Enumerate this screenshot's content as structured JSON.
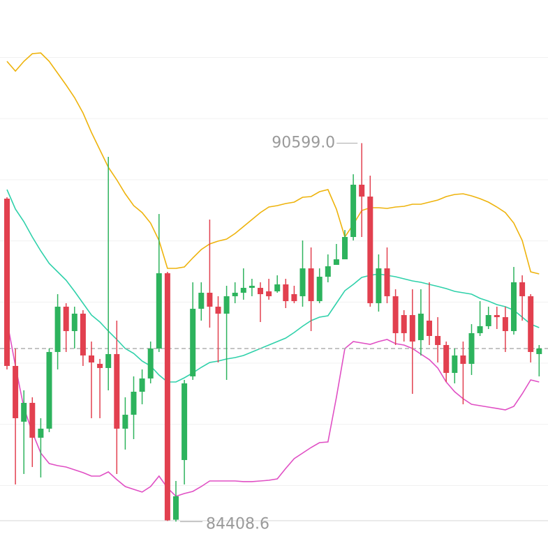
{
  "chart_data": {
    "type": "candlestick",
    "ylim": [
      84059,
      92940
    ],
    "yticks": [
      85000,
      86000,
      87000,
      88000,
      89000,
      90000,
      91000,
      92000
    ],
    "grid": true,
    "up_color": "#2db35d",
    "down_color": "#e2404f",
    "open": [
      89691,
      86955,
      86043,
      86351,
      85781,
      85929,
      87183,
      87924,
      87525,
      87810,
      87126,
      86989,
      86921,
      87149,
      85929,
      86157,
      86533,
      86750,
      87240,
      88471,
      84440,
      85416,
      86784,
      87890,
      88152,
      87924,
      87810,
      88095,
      88152,
      88232,
      88232,
      88175,
      88175,
      88289,
      88129,
      88095,
      88551,
      88015,
      88414,
      88608,
      88699,
      89064,
      89919,
      89725,
      87981,
      88551,
      88095,
      87787,
      87787,
      87377,
      87696,
      87445,
      87297,
      86841,
      87126,
      86989,
      87491,
      87605,
      87787,
      87753,
      87525,
      88323,
      88095,
      87149
    ],
    "high": [
      89714,
      87240,
      86556,
      86442,
      86100,
      87240,
      88129,
      87981,
      87924,
      87867,
      87354,
      87069,
      90375,
      87696,
      86442,
      86784,
      86898,
      87354,
      89440,
      88494,
      85074,
      86727,
      88323,
      88323,
      89349,
      88095,
      88266,
      88323,
      88551,
      88380,
      88323,
      88380,
      88437,
      88380,
      88266,
      89007,
      88893,
      88551,
      88779,
      88950,
      89178,
      90090,
      90599.0,
      90067,
      88779,
      88893,
      88209,
      87867,
      88209,
      88209,
      88323,
      87753,
      87354,
      87240,
      87354,
      87639,
      88015,
      87924,
      87924,
      87924,
      88574,
      88437,
      88129,
      87297
    ],
    "low": [
      86898,
      85017,
      85188,
      85302,
      85131,
      85872,
      86898,
      87183,
      87240,
      86955,
      86100,
      86100,
      86556,
      85188,
      85587,
      85758,
      86328,
      86670,
      87183,
      84420,
      84408.6,
      85017,
      86727,
      87696,
      87582,
      87012,
      86727,
      87981,
      88038,
      88095,
      87673,
      88038,
      88152,
      87901,
      87981,
      87924,
      87525,
      87981,
      88323,
      88608,
      88699,
      89007,
      89064,
      87924,
      87844,
      87981,
      87297,
      87354,
      86499,
      87126,
      87297,
      87012,
      86693,
      86670,
      86328,
      86807,
      87445,
      87559,
      87559,
      87183,
      87468,
      87696,
      87012,
      86784
    ],
    "close": [
      86955,
      86100,
      86351,
      85781,
      85929,
      87183,
      87924,
      87525,
      87810,
      87126,
      87012,
      86921,
      87149,
      85929,
      86157,
      86533,
      86750,
      87240,
      88471,
      84430,
      84823,
      86670,
      87890,
      88152,
      87924,
      87810,
      88095,
      88152,
      88232,
      88266,
      88129,
      88095,
      88289,
      88015,
      88015,
      88551,
      88015,
      88414,
      88585,
      88699,
      89064,
      89919,
      89725,
      87981,
      88551,
      88095,
      87491,
      87491,
      87354,
      87810,
      87445,
      87297,
      86841,
      87126,
      86989,
      87491,
      87605,
      87787,
      87753,
      87525,
      88323,
      88095,
      87183,
      87240
    ],
    "series": [
      {
        "color": "#eeb30c",
        "values": [
          91937,
          91777,
          91937,
          92062,
          92074,
          91937,
          91743,
          91549,
          91344,
          91093,
          90774,
          90489,
          90204,
          89999,
          89771,
          89577,
          89463,
          89292,
          89007,
          88551,
          88551,
          88574,
          88722,
          88859,
          88950,
          88996,
          89030,
          89121,
          89235,
          89349,
          89463,
          89554,
          89577,
          89611,
          89634,
          89714,
          89725,
          89805,
          89839,
          89520,
          89064,
          89269,
          89497,
          89543,
          89543,
          89531,
          89554,
          89566,
          89600,
          89600,
          89634,
          89668,
          89725,
          89759,
          89771,
          89737,
          89691,
          89634,
          89554,
          89463,
          89292,
          89007,
          88494,
          88460
        ]
      },
      {
        "color": "#2fd1aa",
        "values": [
          89839,
          89520,
          89315,
          89064,
          88836,
          88631,
          88494,
          88357,
          88175,
          87981,
          87787,
          87673,
          87525,
          87388,
          87240,
          87160,
          87035,
          86955,
          86807,
          86693,
          86693,
          86761,
          86841,
          86932,
          87012,
          87035,
          87069,
          87092,
          87126,
          87183,
          87240,
          87297,
          87354,
          87411,
          87502,
          87605,
          87696,
          87753,
          87776,
          87981,
          88186,
          88289,
          88403,
          88437,
          88460,
          88437,
          88414,
          88380,
          88346,
          88323,
          88289,
          88255,
          88220,
          88175,
          88152,
          88129,
          88061,
          88015,
          87958,
          87924,
          87867,
          87753,
          87639,
          87582
        ]
      },
      {
        "color": "#e04fc4",
        "values": [
          87696,
          86955,
          86271,
          85872,
          85530,
          85359,
          85325,
          85302,
          85256,
          85211,
          85154,
          85154,
          85222,
          85097,
          84983,
          84937,
          84892,
          84983,
          85154,
          84960,
          84823,
          84869,
          84903,
          84983,
          85074,
          85074,
          85074,
          85074,
          85063,
          85063,
          85074,
          85085,
          85108,
          85279,
          85439,
          85530,
          85621,
          85701,
          85712,
          86442,
          87240,
          87354,
          87331,
          87308,
          87354,
          87388,
          87320,
          87297,
          87240,
          87149,
          87058,
          86921,
          86693,
          86533,
          86419,
          86328,
          86305,
          86282,
          86260,
          86237,
          86294,
          86499,
          86727,
          86693
        ]
      }
    ],
    "max_label": {
      "value": 90599.0,
      "label": "90599.0"
    },
    "min_label": {
      "value": 84408.6,
      "label": "84408.6"
    }
  }
}
